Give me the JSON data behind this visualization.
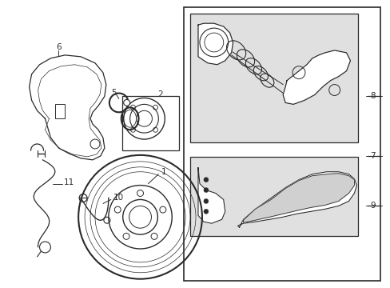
{
  "bg_color": "#ffffff",
  "line_color": "#2a2a2a",
  "gray_fill": "#e0e0e0",
  "fig_width": 4.89,
  "fig_height": 3.6,
  "dpi": 100
}
